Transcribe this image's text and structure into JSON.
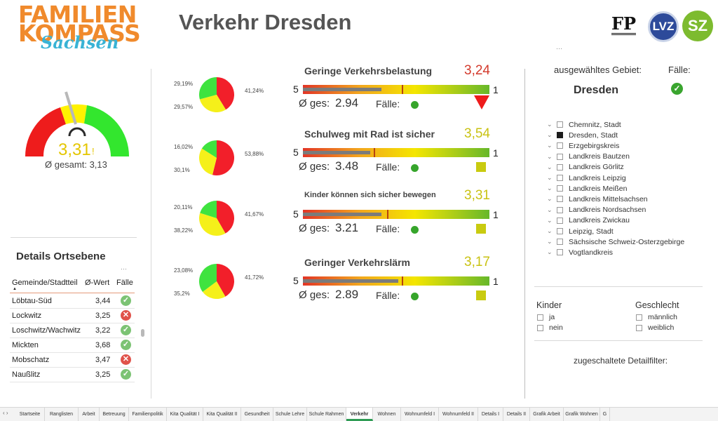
{
  "logo": {
    "line1": "FAMILIEN",
    "line2": "KOMPASS",
    "line3": "Sachsen"
  },
  "page_title": "Verkehr Dresden",
  "publishers": {
    "fp": "FP",
    "lvz": "LVZ",
    "sz": "SZ"
  },
  "visual_menu_glyph": "⋯",
  "gauge": {
    "value": "3,31",
    "mark": "!",
    "avg": "Ø gesamt: 3,13",
    "colors": {
      "red": "#ee1c1c",
      "yellow": "#fff200",
      "green": "#33e62e"
    }
  },
  "details": {
    "title": "Details Ortsebene",
    "headers": {
      "area": "Gemeinde/Stadtteil",
      "value": "Ø-Wert",
      "cases": "Fälle",
      "sort": "▲"
    },
    "rows": [
      {
        "name": "Löbtau-Süd",
        "value": "3,44",
        "ok": true,
        "icon": "✓"
      },
      {
        "name": "Lockwitz",
        "value": "3,25",
        "ok": false,
        "icon": "✕"
      },
      {
        "name": "Loschwitz/Wachwitz",
        "value": "3,22",
        "ok": true,
        "icon": "✓"
      },
      {
        "name": "Mickten",
        "value": "3,68",
        "ok": true,
        "icon": "✓"
      },
      {
        "name": "Mobschatz",
        "value": "3,47",
        "ok": false,
        "icon": "✕"
      },
      {
        "name": "Naußlitz",
        "value": "3,25",
        "ok": true,
        "icon": "✓"
      }
    ]
  },
  "pies": [
    {
      "labels": {
        "tl": "29,19%",
        "bl": "29,57%",
        "r": "41,24%"
      },
      "slices": [
        41.24,
        29.57,
        29.19
      ]
    },
    {
      "labels": {
        "tl": "16,02%",
        "bl": "30,1%",
        "r": "53,88%"
      },
      "slices": [
        53.88,
        30.1,
        16.02
      ]
    },
    {
      "labels": {
        "tl": "20,11%",
        "bl": "38,22%",
        "r": "41,67%"
      },
      "slices": [
        41.67,
        38.22,
        20.11
      ]
    },
    {
      "labels": {
        "tl": "23,08%",
        "bl": "35,2%",
        "r": "41,72%"
      },
      "slices": [
        41.72,
        23.08,
        35.2
      ]
    }
  ],
  "pie_colors": [
    "#f21f2a",
    "#f5f01a",
    "#3fe33f"
  ],
  "metrics": [
    {
      "title": "Geringe Verkehrsbelastung",
      "value": "3,24",
      "value_color": "#d33a2c",
      "left": "5",
      "right": "1",
      "avg_label": "Ø ges:",
      "avg": "2.94",
      "faelle": "Fälle:",
      "fill": 0.42,
      "marker": 0.53,
      "indicator": "triangle"
    },
    {
      "title": "Schulweg mit Rad ist sicher",
      "value": "3,54",
      "value_color": "#c9c212",
      "left": "5",
      "right": "1",
      "avg_label": "Ø ges:",
      "avg": "3.48",
      "faelle": "Fälle:",
      "fill": 0.36,
      "marker": 0.38,
      "indicator": "square"
    },
    {
      "title": "Kinder können sich sicher bewegen",
      "value": "3,31",
      "value_color": "#c9c212",
      "left": "5",
      "right": "1",
      "avg_label": "Ø ges:",
      "avg": "3.21",
      "faelle": "Fälle:",
      "fill": 0.42,
      "marker": 0.45,
      "indicator": "square"
    },
    {
      "title": "Geringer Verkehrslärm",
      "value": "3,17",
      "value_color": "#c9c212",
      "left": "5",
      "right": "1",
      "avg_label": "Ø ges:",
      "avg": "2.89",
      "faelle": "Fälle:",
      "fill": 0.51,
      "marker": 0.53,
      "indicator": "square"
    }
  ],
  "right_panel": {
    "selected_label": "ausgewähltes Gebiet:",
    "faelle_label": "Fälle:",
    "area": "Dresden",
    "ok_icon": "✓",
    "regions": [
      {
        "name": "Chemnitz, Stadt",
        "checked": false
      },
      {
        "name": "Dresden, Stadt",
        "checked": true
      },
      {
        "name": "Erzgebirgskreis",
        "checked": false
      },
      {
        "name": "Landkreis Bautzen",
        "checked": false
      },
      {
        "name": "Landkreis Görlitz",
        "checked": false
      },
      {
        "name": "Landkreis Leipzig",
        "checked": false
      },
      {
        "name": "Landkreis Meißen",
        "checked": false
      },
      {
        "name": "Landkreis Mittelsachsen",
        "checked": false
      },
      {
        "name": "Landkreis Nordsachsen",
        "checked": false
      },
      {
        "name": "Landkreis Zwickau",
        "checked": false
      },
      {
        "name": "Leipzig, Stadt",
        "checked": false
      },
      {
        "name": "Sächsische Schweiz-Osterzgebirge",
        "checked": false
      },
      {
        "name": "Vogtlandkreis",
        "checked": false
      }
    ],
    "kinder": {
      "title": "Kinder",
      "options": [
        "ja",
        "nein"
      ]
    },
    "geschlecht": {
      "title": "Geschlecht",
      "options": [
        "männlich",
        "weiblich"
      ]
    },
    "detail_filters": "zugeschaltete Detailfilter:"
  },
  "tabs": {
    "nav": "‹ ›",
    "items": [
      "Startseite",
      "Ranglisten",
      "Arbeit",
      "Betreuung",
      "Familienpolitik",
      "Kita Qualität I",
      "Kita Qualität II",
      "Gesundheit",
      "Schule Lehre",
      "Schule Rahmen",
      "Verkehr",
      "Wohnen",
      "Wohnumfeld I",
      "Wohnumfeld II",
      "Details I",
      "Details II",
      "Grafik Arbeit",
      "Grafik Wohnen",
      "G"
    ],
    "active": "Verkehr"
  }
}
